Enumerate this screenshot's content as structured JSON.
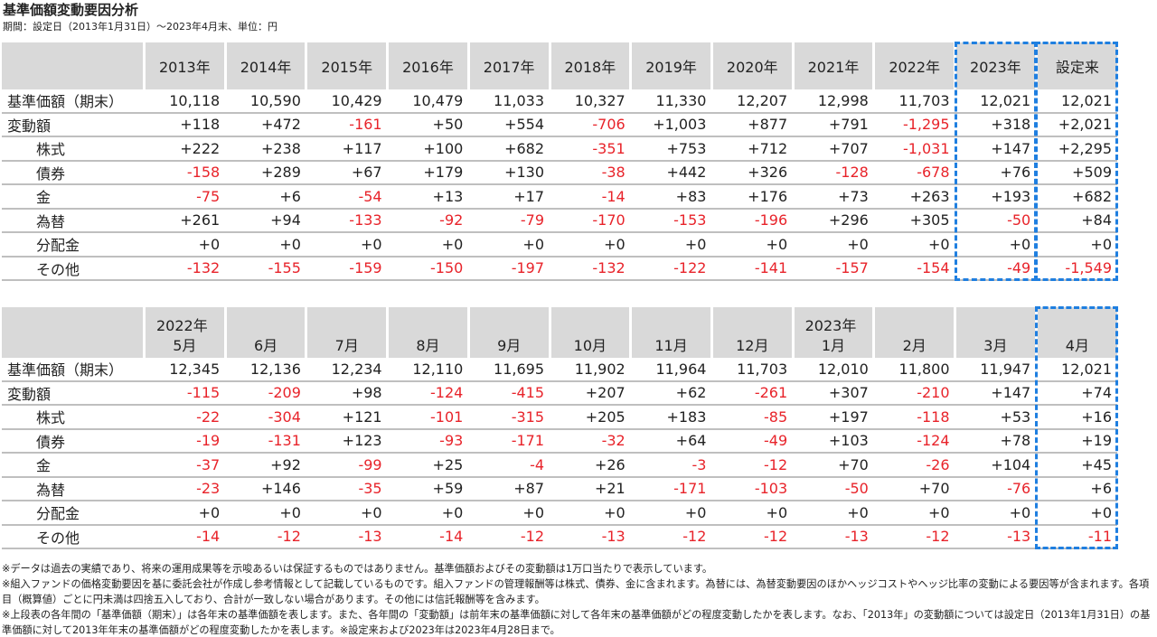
{
  "header": {
    "title": "基準価額変動要因分析",
    "subtitle": "期間：設定日（2013年1月31日）～2023年4月末、単位：円"
  },
  "table1": {
    "columns": [
      "2013年",
      "2014年",
      "2015年",
      "2016年",
      "2017年",
      "2018年",
      "2019年",
      "2020年",
      "2021年",
      "2022年",
      "2023年",
      "設定来"
    ],
    "rows": [
      {
        "label": "基準価額（期末）",
        "cells": [
          "10,118",
          "10,590",
          "10,429",
          "10,479",
          "11,033",
          "10,327",
          "11,330",
          "12,207",
          "12,998",
          "11,703",
          "12,021",
          "12,021"
        ]
      },
      {
        "label": "変動額",
        "cells": [
          "+118",
          "+472",
          "-161",
          "+50",
          "+554",
          "-706",
          "+1,003",
          "+877",
          "+791",
          "-1,295",
          "+318",
          "+2,021"
        ]
      },
      {
        "label": "株式",
        "cells": [
          "+222",
          "+238",
          "+117",
          "+100",
          "+682",
          "-351",
          "+753",
          "+712",
          "+707",
          "-1,031",
          "+147",
          "+2,295"
        ]
      },
      {
        "label": "債券",
        "cells": [
          "-158",
          "+289",
          "+67",
          "+179",
          "+130",
          "-38",
          "+442",
          "+326",
          "-128",
          "-678",
          "+76",
          "+509"
        ]
      },
      {
        "label": "金",
        "cells": [
          "-75",
          "+6",
          "-54",
          "+13",
          "+17",
          "-14",
          "+83",
          "+176",
          "+73",
          "+263",
          "+193",
          "+682"
        ]
      },
      {
        "label": "為替",
        "cells": [
          "+261",
          "+94",
          "-133",
          "-92",
          "-79",
          "-170",
          "-153",
          "-196",
          "+296",
          "+305",
          "-50",
          "+84"
        ]
      },
      {
        "label": "分配金",
        "cells": [
          "+0",
          "+0",
          "+0",
          "+0",
          "+0",
          "+0",
          "+0",
          "+0",
          "+0",
          "+0",
          "+0",
          "+0"
        ]
      },
      {
        "label": "その他",
        "cells": [
          "-132",
          "-155",
          "-159",
          "-150",
          "-197",
          "-132",
          "-122",
          "-141",
          "-157",
          "-154",
          "-49",
          "-1,549"
        ]
      }
    ]
  },
  "table2": {
    "header_groups": [
      {
        "label": "2022年",
        "months": [
          "5月",
          "6月",
          "7月",
          "8月",
          "9月",
          "10月",
          "11月",
          "12月"
        ]
      },
      {
        "label": "2023年",
        "months": [
          "1月",
          "2月",
          "3月",
          "4月"
        ]
      }
    ],
    "rows": [
      {
        "label": "基準価額（期末）",
        "cells": [
          "12,345",
          "12,136",
          "12,234",
          "12,110",
          "11,695",
          "11,902",
          "11,964",
          "11,703",
          "12,010",
          "11,800",
          "11,947",
          "12,021"
        ]
      },
      {
        "label": "変動額",
        "cells": [
          "-115",
          "-209",
          "+98",
          "-124",
          "-415",
          "+207",
          "+62",
          "-261",
          "+307",
          "-210",
          "+147",
          "+74"
        ]
      },
      {
        "label": "株式",
        "cells": [
          "-22",
          "-304",
          "+121",
          "-101",
          "-315",
          "+205",
          "+183",
          "-85",
          "+197",
          "-118",
          "+53",
          "+16"
        ]
      },
      {
        "label": "債券",
        "cells": [
          "-19",
          "-131",
          "+123",
          "-93",
          "-171",
          "-32",
          "+64",
          "-49",
          "+103",
          "-124",
          "+78",
          "+19"
        ]
      },
      {
        "label": "金",
        "cells": [
          "-37",
          "+92",
          "-99",
          "+25",
          "-4",
          "+26",
          "-3",
          "-12",
          "+70",
          "-26",
          "+104",
          "+45"
        ]
      },
      {
        "label": "為替",
        "cells": [
          "-23",
          "+146",
          "-35",
          "+59",
          "+87",
          "+21",
          "-171",
          "-103",
          "-50",
          "+70",
          "-76",
          "+6"
        ]
      },
      {
        "label": "分配金",
        "cells": [
          "+0",
          "+0",
          "+0",
          "+0",
          "+0",
          "+0",
          "+0",
          "+0",
          "+0",
          "+0",
          "+0",
          "+0"
        ]
      },
      {
        "label": "その他",
        "cells": [
          "-14",
          "-12",
          "-13",
          "-14",
          "-12",
          "-13",
          "-12",
          "-12",
          "-13",
          "-12",
          "-13",
          "-11"
        ]
      }
    ]
  },
  "notes": [
    "※データは過去の実績であり、将来の運用成果等を示唆あるいは保証するものではありません。基準価額およびその変動額は1万口当たりで表示しています。",
    "※組入ファンドの価格変動要因を基に委託会社が作成し参考情報として記載しているものです。組入ファンドの管理報酬等は株式、債券、金に含まれます。為替には、為替変動要因のほかヘッジコストやヘッジ比率の変動による要因等が含まれます。各項目（概算値）ごとに円未満は四捨五入しており、合計が一致しない場合があります。その他には信託報酬等を含みます。",
    "※上段表の各年間の「基準価額（期末）」は各年末の基準価額を表します。また、各年間の「変動額」は前年末の基準価額に対して各年末の基準価額がどの程度変動したかを表します。なお、「2013年」の変動額については設定日（2013年1月31日）の基準価額に対して2013年年末の基準価額がどの程度変動したかを表します。※設定来および2023年は2023年4月28日まで。"
  ]
}
